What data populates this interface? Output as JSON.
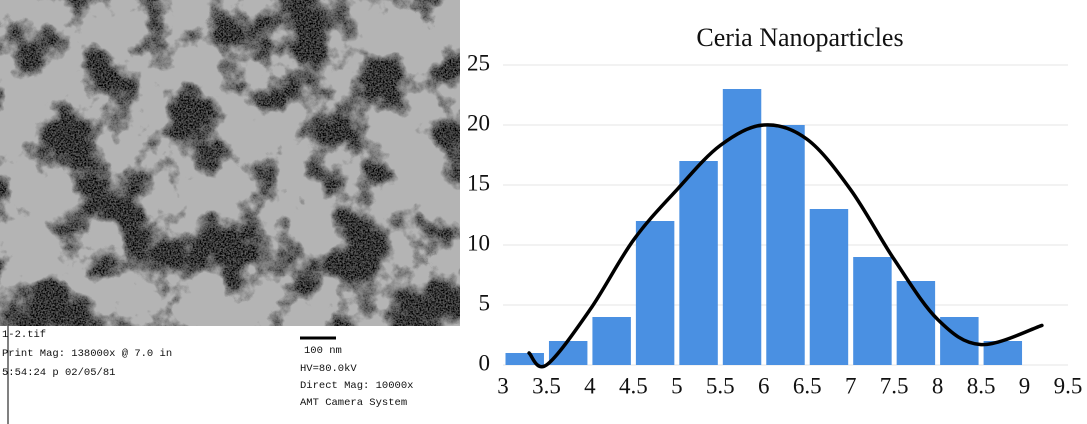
{
  "micrograph": {
    "caption_left": [
      "1-2.tif",
      "Print Mag: 138000x @ 7.0 in",
      "5:54:24 p 02/05/81"
    ],
    "scale_bar": "100 nm",
    "caption_right": [
      "HV=80.0kV",
      "Direct Mag: 10000x",
      "AMT Camera System"
    ]
  },
  "chart_data": {
    "type": "histogram",
    "title": "Ceria Nanoparticles",
    "bins": [
      3,
      3.5,
      4,
      4.5,
      5,
      5.5,
      6,
      6.5,
      7,
      7.5,
      8,
      8.5,
      9
    ],
    "values": [
      1,
      2,
      4,
      12,
      17,
      23,
      20,
      13,
      9,
      7,
      4,
      2
    ],
    "color": "#4a90e2",
    "fit_curve": {
      "color": "#000000",
      "x": [
        3.3,
        3.5,
        4,
        4.5,
        5,
        5.5,
        6,
        6.5,
        7,
        7.5,
        8,
        8.5,
        9.2
      ],
      "y": [
        1,
        0,
        4.6,
        10.4,
        14.6,
        18.3,
        20,
        18.8,
        14.6,
        8.8,
        3.8,
        1.7,
        3.3
      ]
    },
    "xlim": [
      3,
      9.5
    ],
    "xticks": [
      3,
      3.5,
      4,
      4.5,
      5,
      5.5,
      6,
      6.5,
      7,
      7.5,
      8,
      8.5,
      9,
      9.5
    ],
    "ylim": [
      0,
      25
    ],
    "yticks": [
      0,
      5,
      10,
      15,
      20,
      25
    ],
    "grid": true
  }
}
